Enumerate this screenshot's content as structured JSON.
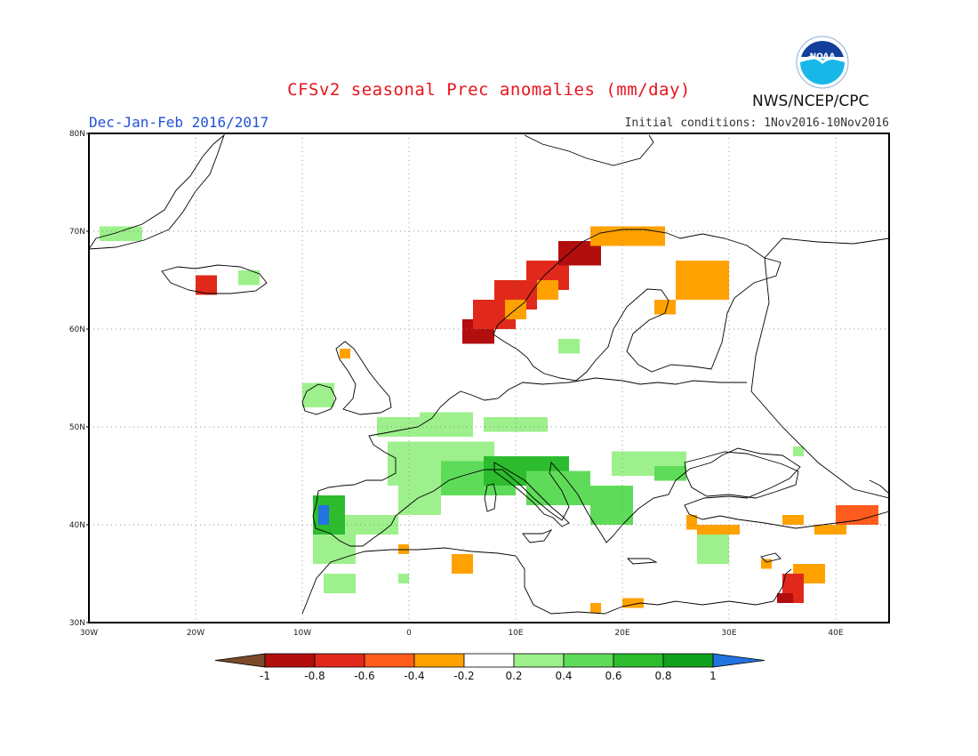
{
  "header": {
    "title": "CFSv2 seasonal Prec anomalies (mm/day)",
    "period": "Dec-Jan-Feb 2016/2017",
    "initial_conditions": "Initial conditions: 1Nov2016-10Nov2016",
    "agency": "NWS/NCEP/CPC",
    "logo_text": "NOAA"
  },
  "map": {
    "projection": "lat-lon",
    "lon_range": [
      -30,
      45
    ],
    "lat_range": [
      30,
      80
    ],
    "lat_labels": [
      "30N",
      "40N",
      "50N",
      "60N",
      "70N",
      "80N"
    ],
    "lon_labels": [
      "30W",
      "20W",
      "10W",
      "0",
      "10E",
      "20E",
      "30E",
      "40E"
    ],
    "grid_lines": "dotted",
    "anomaly_regions": [
      {
        "lon": [
          -29,
          -25
        ],
        "lat": [
          69,
          70.5
        ],
        "v": 0.3
      },
      {
        "lon": [
          -20,
          -18
        ],
        "lat": [
          63.5,
          65.5
        ],
        "v": -0.7
      },
      {
        "lon": [
          -16,
          -14
        ],
        "lat": [
          64.5,
          66
        ],
        "v": 0.3
      },
      {
        "lon": [
          -10,
          -7
        ],
        "lat": [
          52,
          54.5
        ],
        "v": 0.3
      },
      {
        "lon": [
          -6.5,
          -5.5
        ],
        "lat": [
          57,
          58
        ],
        "v": -0.3
      },
      {
        "lon": [
          5,
          8
        ],
        "lat": [
          58.5,
          61
        ],
        "v": -0.95
      },
      {
        "lon": [
          6,
          10
        ],
        "lat": [
          60,
          63
        ],
        "v": -0.8
      },
      {
        "lon": [
          8,
          12
        ],
        "lat": [
          62,
          65
        ],
        "v": -0.7
      },
      {
        "lon": [
          11,
          15
        ],
        "lat": [
          64,
          67
        ],
        "v": -0.75
      },
      {
        "lon": [
          14,
          18
        ],
        "lat": [
          66.5,
          69
        ],
        "v": -0.85
      },
      {
        "lon": [
          17,
          24
        ],
        "lat": [
          68.5,
          70.5
        ],
        "v": -0.35
      },
      {
        "lon": [
          9,
          11
        ],
        "lat": [
          61,
          63
        ],
        "v": -0.4
      },
      {
        "lon": [
          12,
          14
        ],
        "lat": [
          63,
          65
        ],
        "v": -0.35
      },
      {
        "lon": [
          25,
          30
        ],
        "lat": [
          63,
          67
        ],
        "v": -0.35
      },
      {
        "lon": [
          23,
          25
        ],
        "lat": [
          61.5,
          63
        ],
        "v": -0.3
      },
      {
        "lon": [
          14,
          16
        ],
        "lat": [
          57.5,
          59
        ],
        "v": 0.3
      },
      {
        "lon": [
          -3,
          1
        ],
        "lat": [
          49,
          51
        ],
        "v": 0.3
      },
      {
        "lon": [
          1,
          6
        ],
        "lat": [
          49,
          51.5
        ],
        "v": 0.3
      },
      {
        "lon": [
          7,
          13
        ],
        "lat": [
          49.5,
          51
        ],
        "v": 0.3
      },
      {
        "lon": [
          -2,
          8
        ],
        "lat": [
          44,
          48.5
        ],
        "v": 0.3
      },
      {
        "lon": [
          -1,
          3
        ],
        "lat": [
          41,
          45
        ],
        "v": 0.3
      },
      {
        "lon": [
          3,
          10
        ],
        "lat": [
          43,
          46.5
        ],
        "v": 0.5
      },
      {
        "lon": [
          7,
          15
        ],
        "lat": [
          44,
          47
        ],
        "v": 0.65
      },
      {
        "lon": [
          11,
          17
        ],
        "lat": [
          42,
          45.5
        ],
        "v": 0.45
      },
      {
        "lon": [
          17,
          21
        ],
        "lat": [
          40,
          44
        ],
        "v": 0.5
      },
      {
        "lon": [
          19,
          26
        ],
        "lat": [
          45,
          47.5
        ],
        "v": 0.3
      },
      {
        "lon": [
          23,
          26
        ],
        "lat": [
          44.5,
          46
        ],
        "v": 0.5
      },
      {
        "lon": [
          -9,
          -6
        ],
        "lat": [
          39,
          43
        ],
        "v": 0.7
      },
      {
        "lon": [
          -8.5,
          -7.5
        ],
        "lat": [
          40,
          42
        ],
        "v": 1.0
      },
      {
        "lon": [
          -6,
          -1
        ],
        "lat": [
          39,
          41
        ],
        "v": 0.3
      },
      {
        "lon": [
          -9,
          -5
        ],
        "lat": [
          36,
          39
        ],
        "v": 0.3
      },
      {
        "lon": [
          -8,
          -5
        ],
        "lat": [
          33,
          35
        ],
        "v": 0.3
      },
      {
        "lon": [
          4,
          6
        ],
        "lat": [
          35,
          37
        ],
        "v": -0.3
      },
      {
        "lon": [
          -1,
          0
        ],
        "lat": [
          37,
          38
        ],
        "v": -0.3
      },
      {
        "lon": [
          27,
          30
        ],
        "lat": [
          36,
          39
        ],
        "v": 0.3
      },
      {
        "lon": [
          26,
          27
        ],
        "lat": [
          39.5,
          41
        ],
        "v": -0.3
      },
      {
        "lon": [
          27,
          31
        ],
        "lat": [
          39,
          40
        ],
        "v": -0.3
      },
      {
        "lon": [
          35,
          37
        ],
        "lat": [
          40,
          41
        ],
        "v": -0.3
      },
      {
        "lon": [
          38,
          41
        ],
        "lat": [
          39,
          40
        ],
        "v": -0.3
      },
      {
        "lon": [
          40,
          44
        ],
        "lat": [
          40,
          42
        ],
        "v": -0.5
      },
      {
        "lon": [
          36,
          39
        ],
        "lat": [
          34,
          36
        ],
        "v": -0.35
      },
      {
        "lon": [
          35,
          37
        ],
        "lat": [
          32,
          35
        ],
        "v": -0.7
      },
      {
        "lon": [
          34.5,
          36
        ],
        "lat": [
          32,
          33
        ],
        "v": -0.95
      },
      {
        "lon": [
          20,
          22
        ],
        "lat": [
          31.5,
          32.5
        ],
        "v": -0.3
      },
      {
        "lon": [
          17,
          18
        ],
        "lat": [
          31,
          32
        ],
        "v": -0.3
      },
      {
        "lon": [
          33,
          34
        ],
        "lat": [
          35.5,
          36.5
        ],
        "v": -0.3
      },
      {
        "lon": [
          36,
          37
        ],
        "lat": [
          47,
          48
        ],
        "v": 0.3
      },
      {
        "lon": [
          -1,
          0
        ],
        "lat": [
          34,
          35
        ],
        "v": 0.3
      }
    ]
  },
  "colorbar": {
    "labels": [
      "-1",
      "-0.8",
      "-0.6",
      "-0.4",
      "-0.2",
      "0.2",
      "0.4",
      "0.6",
      "0.8",
      "1"
    ],
    "colors": [
      "#7a4a2a",
      "#b20e0e",
      "#e0291b",
      "#ff5c1e",
      "#ffa200",
      "#ffffff",
      "#9df08c",
      "#5fdb5a",
      "#2cbc2e",
      "#11a01d",
      "#2373e0"
    ],
    "levels": [
      -1,
      -0.8,
      -0.6,
      -0.4,
      -0.2,
      0.2,
      0.4,
      0.6,
      0.8,
      1
    ]
  }
}
